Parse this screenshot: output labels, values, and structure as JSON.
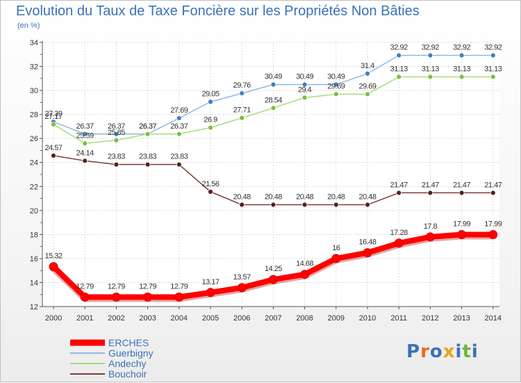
{
  "title": "Evolution du Taux de Taxe Foncière sur les Propriétés Non Bâties",
  "subtitle": "(en %)",
  "logo": [
    "P",
    "r",
    "o",
    "x",
    "i",
    "t",
    "i"
  ],
  "logo_colors": [
    "#3c71b8",
    "#e86a1a",
    "#3c71b8",
    "#e8a21a",
    "#3c71b8",
    "#6cb63c",
    "#3c71b8"
  ],
  "chart_data": {
    "type": "line",
    "x": [
      "2000",
      "2001",
      "2002",
      "2003",
      "2004",
      "2005",
      "2006",
      "2007",
      "2008",
      "2009",
      "2010",
      "2011",
      "2012",
      "2013",
      "2014"
    ],
    "ylim": [
      12,
      34
    ],
    "yticks": [
      12,
      14,
      16,
      18,
      20,
      22,
      24,
      26,
      28,
      30,
      32,
      34
    ],
    "grid": true,
    "legend_position": "bottom-left",
    "series": [
      {
        "name": "ERCHES",
        "color": "#ff0000",
        "marker_color": "#ff0000",
        "values": [
          15.32,
          12.79,
          12.79,
          12.79,
          12.79,
          13.17,
          13.57,
          14.25,
          14.68,
          16,
          16.48,
          17.28,
          17.8,
          17.99,
          17.99
        ],
        "labels": [
          "15.32",
          "12.79",
          "12.79",
          "12.79",
          "12.79",
          "13.17",
          "13.57",
          "14.25",
          "14.68",
          "16",
          "16.48",
          "17.28",
          "17.8",
          "17.99",
          "17.99"
        ]
      },
      {
        "name": "Guerbigny",
        "color": "#8eb8de",
        "marker_color": "#3c80c4",
        "values": [
          27.39,
          26.37,
          26.37,
          26.37,
          27.69,
          29.05,
          29.76,
          30.49,
          30.49,
          30.49,
          31.4,
          32.92,
          32.92,
          32.92,
          32.92
        ],
        "labels": [
          "27.39",
          "26.37",
          "26.37",
          "26.37",
          "27.69",
          "29.05",
          "29.76",
          "30.49",
          "30.49",
          "30.49",
          "31.4",
          "32.92",
          "32.92",
          "32.92",
          "32.92"
        ]
      },
      {
        "name": "Andechy",
        "color": "#a6dc7c",
        "marker_color": "#7ac040",
        "values": [
          27.17,
          25.59,
          25.85,
          26.37,
          26.37,
          26.9,
          27.71,
          28.54,
          29.4,
          29.69,
          29.69,
          31.13,
          31.13,
          31.13,
          31.13
        ],
        "labels": [
          "27.17",
          "25.59",
          "25.85",
          "26.37",
          "26.37",
          "26.9",
          "27.71",
          "28.54",
          "29.4",
          "29.69",
          "29.69",
          "31.13",
          "31.13",
          "31.13",
          "31.13"
        ]
      },
      {
        "name": "Bouchoir",
        "color": "#7a3b3b",
        "marker_color": "#5a1f1f",
        "values": [
          24.57,
          24.14,
          23.83,
          23.83,
          23.83,
          21.56,
          20.48,
          20.48,
          20.48,
          20.48,
          20.48,
          21.47,
          21.47,
          21.47,
          21.47
        ],
        "labels": [
          "24.57",
          "24.14",
          "23.83",
          "23.83",
          "23.83",
          "21.56",
          "20.48",
          "20.48",
          "20.48",
          "20.48",
          "20.48",
          "21.47",
          "21.47",
          "21.47",
          "21.47"
        ]
      }
    ]
  }
}
